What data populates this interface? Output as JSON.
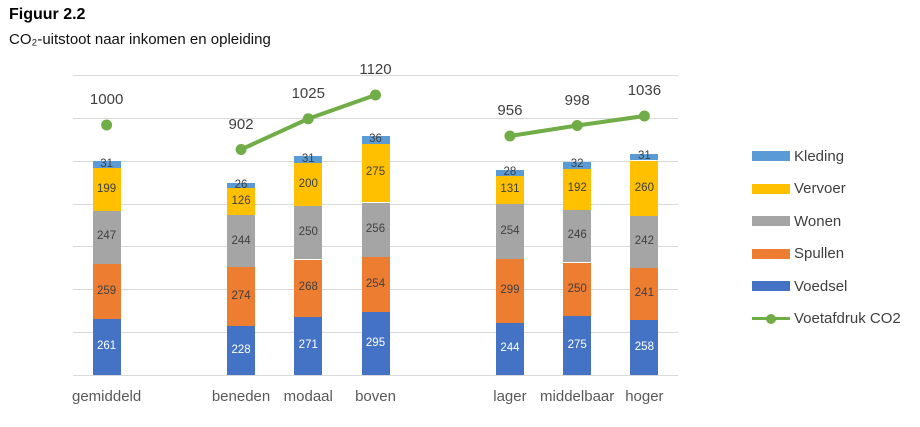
{
  "figure": {
    "title": "Figuur 2.2",
    "subtitle": "CO₂-uitstoot naar inkomen en opleiding"
  },
  "chart_data": {
    "type": "bar",
    "subtype": "stacked-bar-with-line",
    "categories": [
      "gemiddeld",
      "beneden",
      "modaal",
      "boven",
      "lager",
      "middelbaar",
      "hoger"
    ],
    "category_slots": [
      0,
      2,
      3,
      4,
      6,
      7,
      8
    ],
    "category_groups": [
      "gemiddeld",
      "inkomen",
      "opleiding"
    ],
    "series": [
      {
        "name": "Voedsel",
        "color": "#4472C4",
        "label_color": "#ffffff",
        "values": [
          261,
          228,
          271,
          295,
          244,
          275,
          258
        ]
      },
      {
        "name": "Spullen",
        "color": "#ED7D31",
        "label_color": "#404040",
        "values": [
          259,
          274,
          268,
          254,
          299,
          250,
          241
        ]
      },
      {
        "name": "Wonen",
        "color": "#A5A5A5",
        "label_color": "#404040",
        "values": [
          247,
          244,
          250,
          256,
          254,
          246,
          242
        ]
      },
      {
        "name": "Vervoer",
        "color": "#FFC000",
        "label_color": "#404040",
        "values": [
          199,
          126,
          200,
          275,
          131,
          192,
          260
        ]
      },
      {
        "name": "Kleding",
        "color": "#5B9BD5",
        "label_color": "#404040",
        "values": [
          31,
          26,
          31,
          36,
          28,
          32,
          31
        ]
      }
    ],
    "line_series": {
      "name": "Voetafdruk CO2",
      "color": "#70AD47",
      "values": [
        1000,
        902,
        1025,
        1120,
        956,
        998,
        1036
      ],
      "segments": [
        [
          0
        ],
        [
          1,
          2,
          3
        ],
        [
          4,
          5,
          6
        ]
      ]
    },
    "axis": {
      "primary_max": 1400,
      "secondary_max": 1200,
      "gridline_step": 200,
      "grid": true,
      "gridline_color": "#d9d9d9",
      "axis_labels_visible": false
    },
    "legend": [
      {
        "label": "Kleding",
        "color": "#5B9BD5",
        "type": "bar"
      },
      {
        "label": "Vervoer",
        "color": "#FFC000",
        "type": "bar"
      },
      {
        "label": "Wonen",
        "color": "#A5A5A5",
        "type": "bar"
      },
      {
        "label": "Spullen",
        "color": "#ED7D31",
        "type": "bar"
      },
      {
        "label": "Voedsel",
        "color": "#4472C4",
        "type": "bar"
      },
      {
        "label": "Voetafdruk CO2",
        "color": "#70AD47",
        "type": "line"
      }
    ],
    "legend_position": "right"
  }
}
